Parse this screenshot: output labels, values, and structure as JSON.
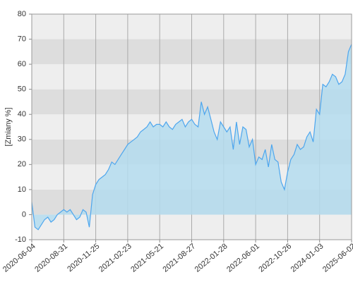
{
  "chart_data": {
    "type": "area",
    "y_label": "[Zmiany %]",
    "categories": [
      "2020-06-04",
      null,
      null,
      null,
      null,
      null,
      null,
      null,
      null,
      null,
      "2020-08-31",
      null,
      null,
      null,
      null,
      null,
      null,
      null,
      null,
      null,
      "2020-11-25",
      null,
      null,
      null,
      null,
      null,
      null,
      null,
      null,
      null,
      "2021-02-23",
      null,
      null,
      null,
      null,
      null,
      null,
      null,
      null,
      null,
      "2021-05-21",
      null,
      null,
      null,
      null,
      null,
      null,
      null,
      null,
      null,
      "2021-08-27",
      null,
      null,
      null,
      null,
      null,
      null,
      null,
      null,
      null,
      "2022-01-28",
      null,
      null,
      null,
      null,
      null,
      null,
      null,
      null,
      null,
      "2022-06-01",
      null,
      null,
      null,
      null,
      null,
      null,
      null,
      null,
      null,
      "2022-10-26",
      null,
      null,
      null,
      null,
      null,
      null,
      null,
      null,
      null,
      "2024-01-03",
      null,
      null,
      null,
      null,
      null,
      null,
      null,
      null,
      null,
      "2025-06-02"
    ],
    "values": [
      5,
      -5,
      -6,
      -4,
      -2,
      -1,
      -3,
      -2,
      0,
      1,
      2,
      1,
      2,
      0,
      -2,
      -1,
      2,
      1,
      -5,
      8,
      12,
      14,
      15,
      16,
      18,
      21,
      20,
      22,
      24,
      26,
      28,
      29,
      30,
      31,
      33,
      34,
      35,
      37,
      35,
      36,
      36,
      35,
      37,
      35,
      34,
      36,
      37,
      38,
      35,
      37,
      38,
      36,
      35,
      45,
      40,
      43,
      38,
      33,
      30,
      37,
      35,
      33,
      35,
      26,
      37,
      28,
      35,
      34,
      27,
      30,
      20,
      23,
      22,
      26,
      19,
      28,
      22,
      21,
      13,
      10,
      17,
      22,
      24,
      28,
      26,
      27,
      31,
      33,
      29,
      42,
      40,
      52,
      51,
      53,
      56,
      55,
      52,
      53,
      56,
      65,
      68
    ],
    "color": "#4da6ee",
    "fill_color": "#b4dcee",
    "ylim": [
      -10,
      80
    ],
    "yticks": [
      -10,
      0,
      10,
      20,
      30,
      40,
      50,
      60,
      70,
      80
    ],
    "grid": true
  }
}
